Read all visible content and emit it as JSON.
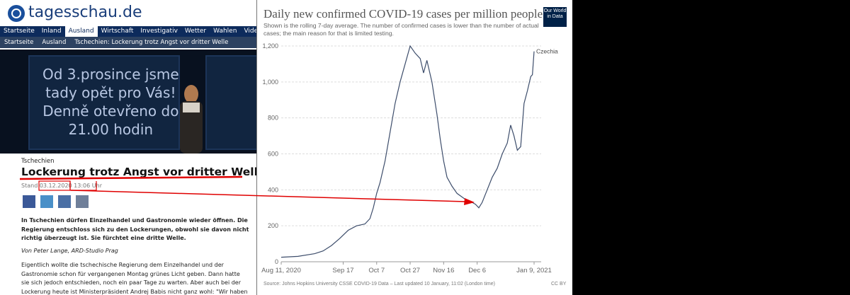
{
  "site": {
    "logo": "tagesschau.de",
    "nav": [
      "Startseite",
      "Inland",
      "Ausland",
      "Wirtschaft",
      "Investigativ",
      "Wetter",
      "Wahlen",
      "Videos"
    ],
    "breadcrumb": [
      "Startseite",
      "Ausland",
      "Tschechien: Lockerung trotz Angst vor dritter Welle"
    ]
  },
  "image_text": [
    "Od 3.prosince jsme",
    "tady opět pro Vás!",
    "Denně otevřeno do",
    "21.00 hodin"
  ],
  "article": {
    "kicker": "Tschechien",
    "headline": "Lockerung trotz Angst vor dritter Welle",
    "stand_label": "Stand",
    "date": "03.12.2020",
    "time": "13:06 Uhr",
    "lead": "In Tschechien dürfen Einzelhandel und Gastronomie wieder öffnen. Die Regierung entschloss sich zu den Lockerungen, obwohl sie davon nicht richtig überzeugt ist. Sie fürchtet eine dritte Welle.",
    "author": "Von Peter Lange, ARD-Studio Prag",
    "body": "Eigentlich wollte die tschechische Regierung dem Einzelhandel und der Gastronomie schon für vergangenen Montag grünes Licht geben. Dann hatte sie sich jedoch entschieden, noch ein paar Tage zu warten. Aber auch bei der Lockerung heute ist Ministerpräsident Andrej Babis nicht ganz wohl: \"Wir haben immer noch hohe"
  },
  "chart_data": {
    "type": "line",
    "title": "Daily new confirmed COVID-19 cases per million people",
    "subtitle": "Shown is the rolling 7-day average. The number of confirmed cases is lower than the number of actual cases; the main reason for that is limited testing.",
    "logo": "Our World in Data",
    "source": "Source: Johns Hopkins University CSSE COVID-19 Data – Last updated 10 January, 11:02 (London time)",
    "license": "CC BY",
    "x": [
      "2020-08-11",
      "2020-08-21",
      "2020-08-31",
      "2020-09-05",
      "2020-09-10",
      "2020-09-15",
      "2020-09-20",
      "2020-09-25",
      "2020-09-30",
      "2020-10-03",
      "2020-10-05",
      "2020-10-07",
      "2020-10-09",
      "2020-10-12",
      "2020-10-15",
      "2020-10-18",
      "2020-10-21",
      "2020-10-24",
      "2020-10-27",
      "2020-10-30",
      "2020-11-02",
      "2020-11-04",
      "2020-11-06",
      "2020-11-09",
      "2020-11-12",
      "2020-11-14",
      "2020-11-16",
      "2020-11-18",
      "2020-11-21",
      "2020-11-24",
      "2020-11-27",
      "2020-11-30",
      "2020-12-03",
      "2020-12-05",
      "2020-12-07",
      "2020-12-09",
      "2020-12-12",
      "2020-12-15",
      "2020-12-18",
      "2020-12-21",
      "2020-12-24",
      "2020-12-26",
      "2020-12-28",
      "2020-12-30",
      "2021-01-01",
      "2021-01-03",
      "2021-01-05",
      "2021-01-07",
      "2021-01-08",
      "2021-01-09"
    ],
    "series": [
      {
        "name": "Czechia",
        "color": "#3d4d6b",
        "values": [
          25,
          30,
          45,
          60,
          90,
          130,
          175,
          200,
          210,
          240,
          300,
          380,
          440,
          560,
          720,
          880,
          1000,
          1100,
          1200,
          1160,
          1130,
          1050,
          1120,
          1000,
          820,
          680,
          560,
          470,
          420,
          380,
          360,
          340,
          330,
          320,
          300,
          330,
          400,
          470,
          520,
          600,
          660,
          760,
          700,
          620,
          640,
          880,
          950,
          1030,
          1040,
          1170
        ]
      }
    ],
    "xlim": [
      "2020-08-11",
      "2021-01-09"
    ],
    "xticks": [
      {
        "value": "2020-08-11",
        "label": "Aug 11, 2020"
      },
      {
        "value": "2020-09-17",
        "label": "Sep 17"
      },
      {
        "value": "2020-10-07",
        "label": "Oct 7"
      },
      {
        "value": "2020-10-27",
        "label": "Oct 27"
      },
      {
        "value": "2020-11-16",
        "label": "Nov 16"
      },
      {
        "value": "2020-12-06",
        "label": "Dec 6"
      },
      {
        "value": "2021-01-09",
        "label": "Jan 9, 2021"
      }
    ],
    "ylim": [
      0,
      1200
    ],
    "yticks": [
      0,
      200,
      400,
      600,
      800,
      {
        "value": 1000,
        "label": "1,000"
      },
      {
        "value": 1200,
        "label": "1,200"
      }
    ],
    "grid": true
  }
}
